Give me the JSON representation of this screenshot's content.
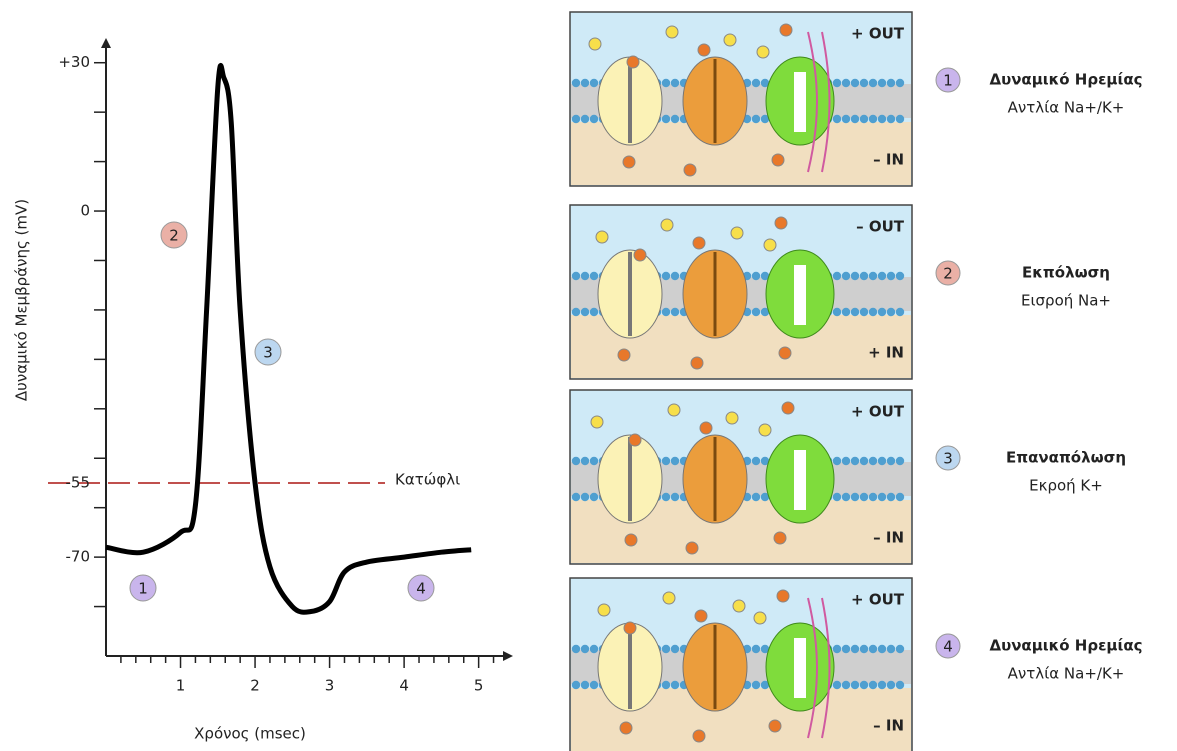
{
  "chart_data": {
    "type": "line",
    "color": "#000000",
    "x": [
      0,
      0.5,
      1,
      1.2,
      1.35,
      1.5,
      1.58,
      1.68,
      1.8,
      2.0,
      2.2,
      2.5,
      2.75,
      3.0,
      3.2,
      3.5,
      4.0,
      4.5,
      4.9
    ],
    "values": [
      -68,
      -69,
      -65,
      -59.5,
      -20,
      25,
      27,
      18,
      -20,
      -55,
      -72,
      -80,
      -81,
      -79,
      -73,
      -71,
      -70,
      -69,
      -68.5
    ],
    "xlim": [
      0,
      5.3
    ],
    "ylim": [
      -90,
      35
    ],
    "xticks": [
      1,
      2,
      3,
      4,
      5
    ],
    "xminorticks": [
      0.2,
      0.4,
      0.6,
      0.8,
      1.2,
      1.4,
      1.6,
      1.8,
      2.2,
      2.4,
      2.6,
      2.8,
      3.2,
      3.4,
      3.6,
      3.8,
      4.2,
      4.4,
      4.6,
      4.8,
      5.2
    ],
    "yticks": [
      {
        "value": 30,
        "label": "+30"
      },
      0,
      -70
    ],
    "yminorticks": [
      -80,
      -60,
      -50,
      -40,
      -30,
      -20,
      -10,
      10,
      20
    ],
    "xlabel": "Χρόνος (msec)",
    "ylabel": "Δυναμικό Μεμβράνης (mV)",
    "threshold": {
      "value": -55,
      "label": "Κατώφλι",
      "color": "#c0504d"
    },
    "annotations": [
      {
        "text": "1",
        "color": "#c9b5ec"
      },
      {
        "text": "2",
        "color": "#eab0a6"
      },
      {
        "text": "3",
        "color": "#bcd7f0"
      },
      {
        "text": "4",
        "color": "#c9b5ec"
      }
    ]
  },
  "panels": [
    {
      "charge_top": "+ OUT",
      "charge_bottom": "– IN",
      "charge_color": "#7030a0",
      "number": "1",
      "number_color": "#c9b5ec",
      "title": "Δυναμικό Ηρεμίας",
      "subtitle": "Αντλία Na+/K+"
    },
    {
      "charge_top": "– OUT",
      "charge_bottom": "+ IN",
      "charge_color": "#e0501f",
      "number": "2",
      "number_color": "#eab0a6",
      "title": "Εκπόλωση",
      "subtitle": "Εισροή Na+"
    },
    {
      "charge_top": "+ OUT",
      "charge_bottom": "– IN",
      "charge_color": "#1f3fa0",
      "number": "3",
      "number_color": "#bcd7f0",
      "title": "Επαναπόλωση",
      "subtitle": "Εκροή K+"
    },
    {
      "charge_top": "+ OUT",
      "charge_bottom": "– IN",
      "charge_color": "#7030a0",
      "number": "4",
      "number_color": "#c9b5ec",
      "title": "Δυναμικό Ηρεμίας",
      "subtitle": "Αντλία Na+/K+"
    }
  ]
}
